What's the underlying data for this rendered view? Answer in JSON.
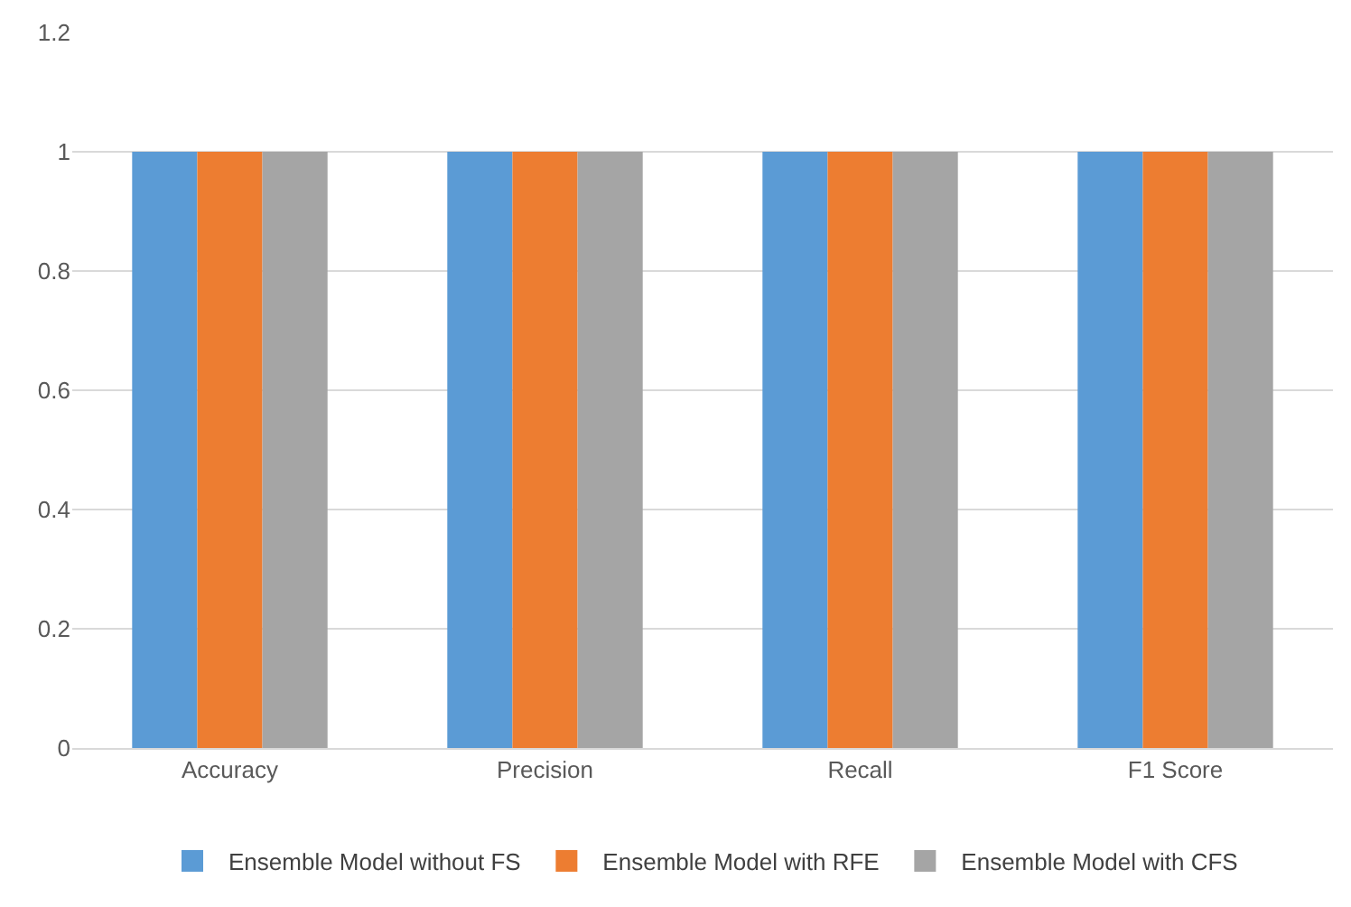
{
  "chart_data": {
    "type": "bar",
    "categories": [
      "Accuracy",
      "Precision",
      "Recall",
      "F1 Score"
    ],
    "series": [
      {
        "name": "Ensemble Model without FS",
        "color": "#5b9bd5",
        "values": [
          1,
          1,
          1,
          1
        ]
      },
      {
        "name": "Ensemble Model with RFE",
        "color": "#ed7d31",
        "values": [
          1,
          1,
          1,
          1
        ]
      },
      {
        "name": "Ensemble Model with CFS",
        "color": "#a5a5a5",
        "values": [
          1,
          1,
          1,
          1
        ]
      }
    ],
    "ylim": [
      0,
      1.2
    ],
    "yticks": [
      0,
      0.2,
      0.4,
      0.6,
      0.8,
      1,
      1.2
    ],
    "grid": "y",
    "legend": "bottom"
  }
}
